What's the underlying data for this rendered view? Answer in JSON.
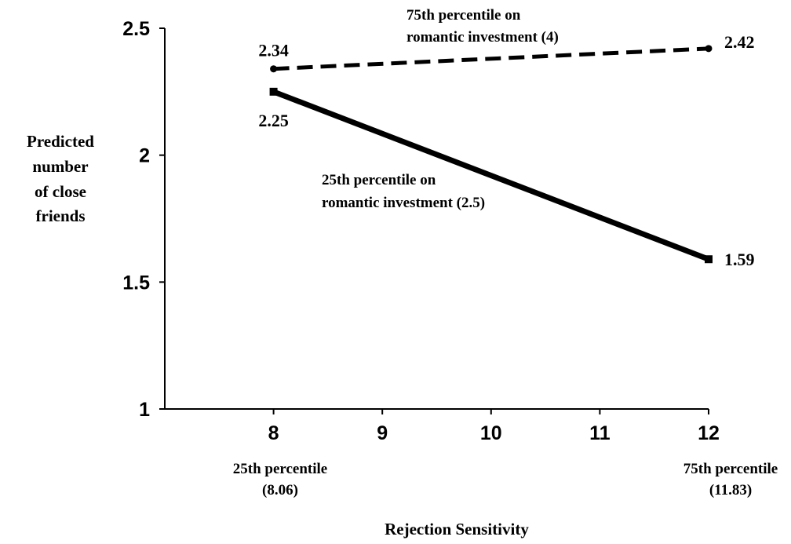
{
  "chart_data": {
    "type": "line",
    "ylabel_lines": [
      "Predicted",
      "number",
      "of close",
      "friends"
    ],
    "xlabel": "Rejection Sensitivity",
    "xlim": [
      7,
      12
    ],
    "ylim": [
      1,
      2.5
    ],
    "x_ticks": [
      "8",
      "9",
      "10",
      "11",
      "12"
    ],
    "y_ticks": [
      "2.5",
      "2",
      "1.5",
      "1"
    ],
    "x_notes": [
      {
        "x": 8,
        "line1": "25th percentile",
        "line2": "(8.06)"
      },
      {
        "x": 12,
        "line1": "75th percentile",
        "line2": "(11.83)"
      }
    ],
    "series": [
      {
        "name_lines": [
          "75th percentile on",
          "romantic investment (4)"
        ],
        "style": "dashed",
        "marker": "circle",
        "x": [
          8,
          12
        ],
        "y": [
          2.34,
          2.42
        ],
        "value_labels": [
          "2.34",
          "2.42"
        ]
      },
      {
        "name_lines": [
          "25th percentile on",
          "romantic investment (2.5)"
        ],
        "style": "solid",
        "marker": "square",
        "x": [
          8,
          12
        ],
        "y": [
          2.25,
          1.59
        ],
        "value_labels": [
          "2.25",
          "1.59"
        ]
      }
    ],
    "grid": false,
    "legend": "none",
    "colors": {
      "line": "#000000"
    }
  }
}
